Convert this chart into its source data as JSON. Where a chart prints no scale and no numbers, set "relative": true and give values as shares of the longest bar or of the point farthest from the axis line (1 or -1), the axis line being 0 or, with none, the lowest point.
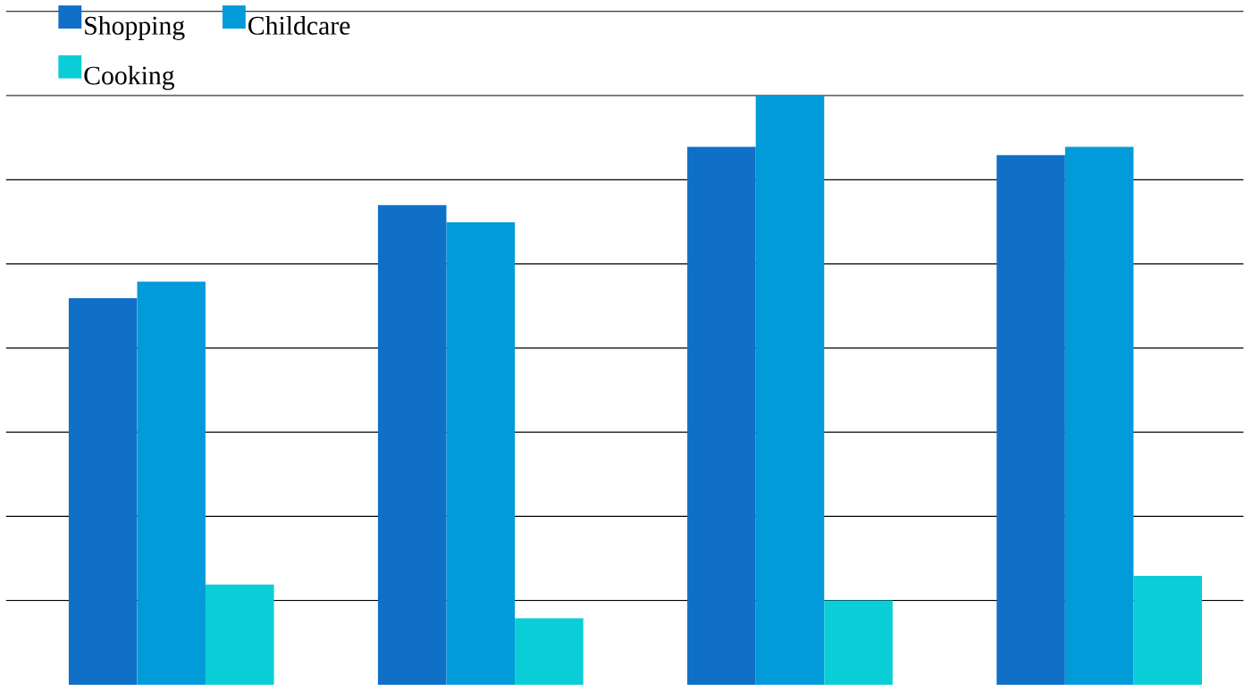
{
  "chart_data": {
    "type": "bar",
    "relative": true,
    "categories": [
      null,
      null,
      null,
      null
    ],
    "grid": "y",
    "legend": "top left",
    "series": [
      {
        "name": "Shopping",
        "color": "#1070c8",
        "values": [
          0.656,
          0.814,
          0.913,
          0.899
        ]
      },
      {
        "name": "Childcare",
        "color": "#009bd8",
        "values": [
          0.684,
          0.785,
          1,
          0.913
        ]
      },
      {
        "name": "Cooking",
        "color": "#0bcdd8",
        "values": [
          0.17,
          0.113,
          0.143,
          0.185
        ]
      }
    ]
  }
}
